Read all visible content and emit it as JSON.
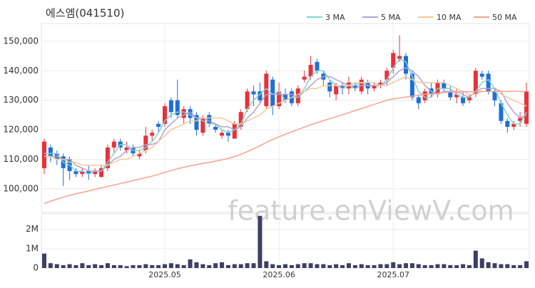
{
  "chart_data": [
    {
      "type": "candlestick",
      "title": "에스엠(041510)",
      "watermark": "feature.enViewV.com",
      "legend": "upper right",
      "grid": true,
      "up_color": "#e8313a",
      "down_color": "#1e6fd9",
      "open": [
        107000,
        114000,
        112000,
        111000,
        110000,
        106000,
        105000,
        106000,
        105000,
        104000,
        107000,
        114000,
        116000,
        113000,
        114000,
        111000,
        113000,
        118000,
        122000,
        122000,
        130000,
        130000,
        124000,
        127000,
        125000,
        119000,
        125000,
        121000,
        118000,
        119000,
        117000,
        121000,
        127000,
        133000,
        133000,
        128000,
        137000,
        128000,
        132000,
        133000,
        129000,
        137000,
        138000,
        143000,
        139000,
        136000,
        132000,
        135000,
        134000,
        135000,
        133000,
        136000,
        134000,
        135000,
        137000,
        141000,
        144000,
        145000,
        139000,
        131000,
        130000,
        134000,
        132000,
        136000,
        133000,
        131000,
        131000,
        130000,
        132000,
        139000,
        139000,
        133000,
        129000,
        123000,
        121000,
        123000,
        122000
      ],
      "high": [
        117000,
        115000,
        113000,
        112000,
        111000,
        107000,
        107000,
        108000,
        107000,
        108000,
        115000,
        117000,
        117000,
        116000,
        115000,
        113000,
        121000,
        120000,
        123000,
        129000,
        131000,
        137000,
        128000,
        128000,
        126000,
        125000,
        126000,
        122000,
        120000,
        120000,
        123000,
        127000,
        134000,
        135000,
        136000,
        140000,
        138000,
        136000,
        134000,
        134000,
        135000,
        140000,
        145000,
        144000,
        140000,
        137000,
        136000,
        136000,
        138000,
        136000,
        138000,
        137000,
        136000,
        137000,
        141000,
        147000,
        152000,
        146000,
        140000,
        132000,
        134000,
        136000,
        137000,
        137000,
        135000,
        134000,
        133000,
        132000,
        141000,
        140000,
        140000,
        134000,
        130000,
        124000,
        123000,
        126000,
        136000
      ],
      "low": [
        105000,
        109000,
        108000,
        101000,
        103000,
        104000,
        104000,
        103000,
        104000,
        104000,
        106000,
        112000,
        113000,
        112000,
        111000,
        110000,
        112000,
        116000,
        119000,
        121000,
        124000,
        124000,
        122000,
        122000,
        118000,
        118000,
        121000,
        119000,
        117000,
        116000,
        117000,
        120000,
        126000,
        128000,
        129000,
        127000,
        125000,
        127000,
        129000,
        128000,
        128000,
        136000,
        137000,
        139000,
        135000,
        131000,
        130000,
        132000,
        132000,
        133000,
        132000,
        132000,
        133000,
        134000,
        135000,
        139000,
        143000,
        137000,
        130000,
        127000,
        129000,
        131000,
        131000,
        133000,
        130000,
        129000,
        128000,
        129000,
        131000,
        137000,
        132000,
        128000,
        122000,
        119000,
        120000,
        121000,
        121000
      ],
      "close": [
        116000,
        111000,
        110000,
        107000,
        106000,
        105000,
        106000,
        105000,
        106000,
        107000,
        114000,
        116000,
        114000,
        114000,
        112000,
        112000,
        118000,
        119000,
        121000,
        128000,
        126000,
        125000,
        127000,
        124000,
        120000,
        124000,
        122000,
        120000,
        119000,
        118000,
        122000,
        126000,
        133000,
        132000,
        130000,
        139000,
        128000,
        133000,
        130000,
        129000,
        134000,
        138000,
        142000,
        140000,
        137000,
        133000,
        135000,
        134000,
        136000,
        134000,
        137000,
        134000,
        135000,
        136000,
        140000,
        146000,
        145000,
        139000,
        131000,
        129000,
        133000,
        132000,
        136000,
        134000,
        131000,
        132000,
        129000,
        131000,
        140000,
        138000,
        133000,
        130000,
        123000,
        121000,
        122000,
        124000,
        133000
      ],
      "series": [
        {
          "name": "3 MA",
          "color": "#7fd3d0",
          "values": [
            112000,
            112000,
            112000,
            109000,
            108000,
            106000,
            106000,
            105000,
            106000,
            106000,
            109000,
            112000,
            115000,
            115000,
            113000,
            113000,
            114000,
            116000,
            119000,
            123000,
            125000,
            126000,
            126000,
            125000,
            124000,
            123000,
            122000,
            122000,
            120000,
            119000,
            120000,
            122000,
            127000,
            130000,
            132000,
            134000,
            132000,
            133000,
            130000,
            131000,
            131000,
            134000,
            138000,
            140000,
            140000,
            137000,
            135000,
            134000,
            135000,
            135000,
            136000,
            135000,
            135000,
            135000,
            137000,
            141000,
            144000,
            143000,
            138000,
            133000,
            131000,
            131000,
            134000,
            134000,
            134000,
            132000,
            131000,
            131000,
            133000,
            136000,
            137000,
            134000,
            129000,
            125000,
            122000,
            122000,
            126000
          ]
        },
        {
          "name": "5 MA",
          "color": "#b3a2cc",
          "values": [
            111000,
            111000,
            111000,
            110000,
            110000,
            108000,
            107000,
            106000,
            106000,
            106000,
            108000,
            110000,
            111000,
            113000,
            114000,
            114000,
            115000,
            115000,
            116000,
            120000,
            122000,
            124000,
            125000,
            126000,
            124000,
            124000,
            123000,
            122000,
            121000,
            121000,
            120000,
            121000,
            124000,
            126000,
            129000,
            132000,
            132000,
            132000,
            132000,
            132000,
            131000,
            133000,
            135000,
            137000,
            138000,
            138000,
            137000,
            136000,
            135000,
            134000,
            135000,
            135000,
            135000,
            135000,
            136000,
            138000,
            140000,
            141000,
            140000,
            138000,
            135000,
            133000,
            132000,
            133000,
            133000,
            133000,
            132000,
            131000,
            133000,
            134000,
            134000,
            134000,
            133000,
            129000,
            126000,
            124000,
            125000
          ]
        },
        {
          "name": "10 MA",
          "color": "#f2c99a",
          "values": [
            111000,
            111000,
            110000,
            110000,
            109000,
            109000,
            108000,
            108000,
            108000,
            108000,
            108000,
            109000,
            110000,
            110000,
            111000,
            112000,
            113000,
            114000,
            116000,
            118000,
            120000,
            121000,
            122000,
            123000,
            123000,
            124000,
            124000,
            124000,
            124000,
            123000,
            122000,
            122000,
            123000,
            124000,
            125000,
            127000,
            128000,
            129000,
            130000,
            131000,
            132000,
            133000,
            134000,
            134000,
            135000,
            135000,
            135000,
            135000,
            135000,
            136000,
            136000,
            136000,
            136000,
            135000,
            135000,
            136000,
            137000,
            138000,
            137000,
            136000,
            136000,
            136000,
            136000,
            136000,
            135000,
            134000,
            133000,
            132000,
            132000,
            133000,
            133000,
            133000,
            132000,
            131000,
            130000,
            129000,
            128000
          ]
        },
        {
          "name": "50 MA",
          "color": "#f4a38c",
          "values": [
            95000,
            95800,
            96500,
            97200,
            97800,
            98300,
            98800,
            99300,
            99800,
            100300,
            100800,
            101300,
            101800,
            102300,
            102800,
            103300,
            103800,
            104300,
            104900,
            105600,
            106200,
            106800,
            107300,
            107800,
            108200,
            108600,
            109000,
            109400,
            109800,
            110300,
            110900,
            111700,
            112600,
            113600,
            114600,
            115700,
            116700,
            117600,
            118500,
            119300,
            120100,
            120900,
            121700,
            122400,
            123100,
            123800,
            124400,
            125100,
            125800,
            126500,
            127200,
            127900,
            128600,
            129300,
            130000,
            130500,
            130800,
            131100,
            131400,
            131700,
            132000,
            132200,
            132400,
            132600,
            132800,
            132900,
            132900,
            132900,
            132900,
            133000,
            133000,
            133000,
            133000,
            133000,
            133000,
            133000,
            133000
          ]
        }
      ],
      "ylim": [
        92000,
        156000
      ],
      "yticks": [
        {
          "value": 100000,
          "label": "100,000"
        },
        {
          "value": 110000,
          "label": "110,000"
        },
        {
          "value": 120000,
          "label": "120,000"
        },
        {
          "value": 130000,
          "label": "130,000"
        },
        {
          "value": 140000,
          "label": "140,000"
        },
        {
          "value": 150000,
          "label": "150,000"
        }
      ]
    },
    {
      "type": "bar",
      "color": "#3d3f66",
      "grid": true,
      "categories": [
        null,
        null,
        null,
        null,
        null,
        null,
        null,
        null,
        null,
        null,
        null,
        null,
        null,
        null,
        null,
        null,
        null,
        null,
        null,
        "2025.05",
        null,
        null,
        null,
        null,
        null,
        null,
        null,
        null,
        null,
        null,
        null,
        null,
        null,
        null,
        null,
        null,
        null,
        "2025.06",
        null,
        null,
        null,
        null,
        null,
        null,
        null,
        null,
        null,
        null,
        null,
        null,
        null,
        null,
        null,
        null,
        null,
        "2025.07",
        null,
        null,
        null,
        null,
        null,
        null,
        null,
        null,
        null,
        null,
        null,
        null,
        null,
        null,
        null,
        null,
        null,
        null,
        null,
        null,
        null
      ],
      "values": [
        750000,
        250000,
        200000,
        150000,
        200000,
        150000,
        250000,
        150000,
        200000,
        150000,
        250000,
        150000,
        150000,
        100000,
        150000,
        150000,
        200000,
        150000,
        150000,
        200000,
        250000,
        200000,
        150000,
        450000,
        300000,
        200000,
        150000,
        250000,
        300000,
        150000,
        200000,
        200000,
        250000,
        250000,
        2700000,
        350000,
        200000,
        150000,
        200000,
        150000,
        200000,
        250000,
        250000,
        200000,
        200000,
        150000,
        200000,
        150000,
        250000,
        150000,
        200000,
        150000,
        150000,
        200000,
        200000,
        300000,
        200000,
        250000,
        250000,
        200000,
        150000,
        150000,
        200000,
        200000,
        150000,
        150000,
        200000,
        150000,
        900000,
        500000,
        300000,
        250000,
        200000,
        200000,
        150000,
        150000,
        350000
      ],
      "ylim": [
        0,
        2800000
      ],
      "yticks": [
        0,
        {
          "value": 1000000,
          "label": "1M"
        },
        {
          "value": 2000000,
          "label": "2M"
        }
      ]
    }
  ]
}
